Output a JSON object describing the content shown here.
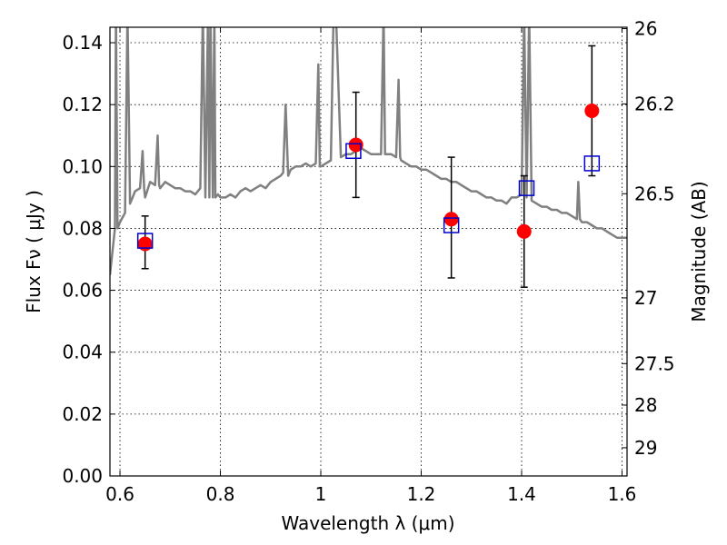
{
  "chart_data": {
    "type": "scatter",
    "xlabel": "Wavelength  λ (μm)",
    "ylabel": "Flux  Fν  ( μJy )",
    "y2label": "Magnitude (AB)",
    "xlim": [
      0.58,
      1.61
    ],
    "ylim": [
      0.0,
      0.145
    ],
    "grid": true,
    "xticks": [
      0.6,
      0.8,
      1.0,
      1.2,
      1.4,
      1.6
    ],
    "xticklabels": [
      "0.6",
      "0.8",
      "1",
      "1.2",
      "1.4",
      "1.6"
    ],
    "yticks": [
      0.0,
      0.02,
      0.04,
      0.06,
      0.08,
      0.1,
      0.12,
      0.14
    ],
    "yticklabels": [
      "0.00",
      "0.02",
      "0.04",
      "0.06",
      "0.08",
      "0.10",
      "0.12",
      "0.14"
    ],
    "mag_ticks": [
      {
        "label": "26",
        "mag": 26.0
      },
      {
        "label": "26.2",
        "mag": 26.2
      },
      {
        "label": "26.5",
        "mag": 26.5
      },
      {
        "label": "27",
        "mag": 27.0
      },
      {
        "label": "27.5",
        "mag": 27.5
      },
      {
        "label": "28",
        "mag": 28.0
      },
      {
        "label": "29",
        "mag": 29.0
      }
    ],
    "colors": {
      "spectrum": "#808080",
      "observed": "#ff0000",
      "model": "#0000cc",
      "error": "#000000",
      "background": "#ffffff"
    },
    "series": [
      {
        "kind": "model_spectrum",
        "x": [
          0.58,
          0.59,
          0.592,
          0.595,
          0.6,
          0.61,
          0.615,
          0.62,
          0.625,
          0.63,
          0.64,
          0.645,
          0.648,
          0.65,
          0.66,
          0.67,
          0.675,
          0.678,
          0.68,
          0.69,
          0.7,
          0.71,
          0.72,
          0.73,
          0.74,
          0.75,
          0.76,
          0.765,
          0.77,
          0.775,
          0.778,
          0.78,
          0.785,
          0.788,
          0.79,
          0.795,
          0.8,
          0.81,
          0.82,
          0.83,
          0.84,
          0.85,
          0.86,
          0.87,
          0.88,
          0.89,
          0.9,
          0.91,
          0.92,
          0.925,
          0.93,
          0.935,
          0.94,
          0.95,
          0.96,
          0.97,
          0.98,
          0.99,
          0.995,
          0.998,
          1.0,
          1.01,
          1.02,
          1.025,
          1.03,
          1.04,
          1.05,
          1.06,
          1.07,
          1.08,
          1.09,
          1.1,
          1.11,
          1.12,
          1.125,
          1.128,
          1.13,
          1.14,
          1.15,
          1.155,
          1.158,
          1.16,
          1.17,
          1.18,
          1.19,
          1.2,
          1.21,
          1.22,
          1.23,
          1.24,
          1.25,
          1.26,
          1.27,
          1.28,
          1.29,
          1.3,
          1.31,
          1.32,
          1.33,
          1.34,
          1.35,
          1.36,
          1.37,
          1.38,
          1.39,
          1.4,
          1.405,
          1.41,
          1.415,
          1.42,
          1.43,
          1.44,
          1.45,
          1.46,
          1.47,
          1.48,
          1.49,
          1.5,
          1.51,
          1.513,
          1.516,
          1.52,
          1.53,
          1.54,
          1.55,
          1.56,
          1.57,
          1.58,
          1.59,
          1.6,
          1.61
        ],
        "y": [
          0.065,
          0.08,
          0.15,
          0.08,
          0.082,
          0.085,
          0.15,
          0.088,
          0.09,
          0.092,
          0.093,
          0.105,
          0.093,
          0.09,
          0.095,
          0.094,
          0.11,
          0.094,
          0.093,
          0.095,
          0.094,
          0.093,
          0.093,
          0.092,
          0.092,
          0.091,
          0.093,
          0.15,
          0.09,
          0.145,
          0.09,
          0.15,
          0.09,
          0.15,
          0.09,
          0.091,
          0.09,
          0.09,
          0.091,
          0.09,
          0.092,
          0.093,
          0.092,
          0.093,
          0.094,
          0.093,
          0.095,
          0.096,
          0.097,
          0.098,
          0.12,
          0.097,
          0.099,
          0.1,
          0.1,
          0.101,
          0.1,
          0.101,
          0.133,
          0.1,
          0.1,
          0.101,
          0.102,
          0.145,
          0.15,
          0.103,
          0.104,
          0.104,
          0.105,
          0.106,
          0.105,
          0.104,
          0.104,
          0.104,
          0.15,
          0.104,
          0.104,
          0.104,
          0.103,
          0.128,
          0.103,
          0.102,
          0.101,
          0.1,
          0.1,
          0.099,
          0.099,
          0.098,
          0.097,
          0.096,
          0.096,
          0.095,
          0.095,
          0.094,
          0.093,
          0.092,
          0.092,
          0.091,
          0.09,
          0.09,
          0.089,
          0.089,
          0.088,
          0.09,
          0.09,
          0.091,
          0.15,
          0.09,
          0.15,
          0.089,
          0.088,
          0.087,
          0.087,
          0.086,
          0.086,
          0.085,
          0.085,
          0.084,
          0.083,
          0.095,
          0.083,
          0.082,
          0.082,
          0.081,
          0.08,
          0.08,
          0.079,
          0.078,
          0.077,
          0.077,
          0.077
        ]
      },
      {
        "kind": "observed",
        "marker": "circle",
        "x": [
          0.65,
          1.07,
          1.26,
          1.405,
          1.54
        ],
        "y": [
          0.075,
          0.107,
          0.083,
          0.079,
          0.118
        ],
        "yerr_low": [
          0.067,
          0.09,
          0.064,
          0.061,
          0.097
        ],
        "yerr_high": [
          0.084,
          0.124,
          0.103,
          0.097,
          0.139
        ]
      },
      {
        "kind": "model_photometry",
        "marker": "open-square",
        "x": [
          0.65,
          1.065,
          1.26,
          1.41,
          1.54
        ],
        "y": [
          0.076,
          0.105,
          0.081,
          0.093,
          0.101
        ]
      }
    ]
  }
}
